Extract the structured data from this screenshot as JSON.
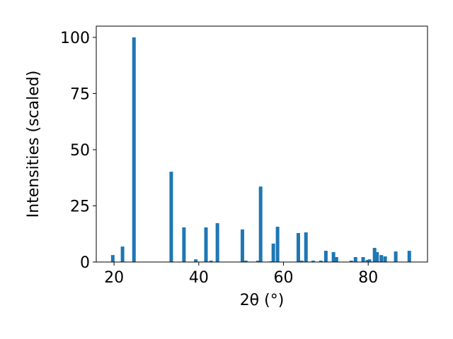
{
  "chart_data": {
    "type": "bar",
    "x_label": "2θ (°)",
    "y_label": "Intensities (scaled)",
    "x": [
      19.7,
      22.0,
      24.7,
      33.5,
      36.5,
      39.3,
      41.7,
      42.9,
      44.4,
      50.3,
      51.1,
      54.0,
      54.6,
      57.1,
      57.6,
      58.6,
      63.5,
      64.3,
      65.3,
      67.0,
      68.8,
      70.0,
      71.8,
      72.5,
      76.0,
      77.0,
      78.8,
      79.8,
      80.3,
      81.5,
      82.1,
      83.1,
      84.0,
      86.5,
      89.7
    ],
    "values": [
      3.1,
      6.9,
      100,
      40.2,
      15.4,
      1.2,
      15.4,
      0.6,
      17.3,
      14.5,
      0.6,
      0.6,
      33.6,
      0.3,
      8.2,
      15.7,
      12.9,
      0.6,
      13.2,
      0.6,
      0.6,
      5.0,
      4.4,
      2.2,
      0.6,
      2.2,
      2.2,
      0.9,
      1.2,
      6.3,
      4.4,
      3.1,
      2.5,
      4.7,
      5.0
    ],
    "color": "#1f77b4",
    "xlim": [
      15.8,
      94.0
    ],
    "xticks": [
      20,
      40,
      60,
      80
    ],
    "ylim": [
      0,
      105
    ],
    "yticks": [
      0,
      25,
      50,
      75,
      100
    ],
    "grid": false
  }
}
